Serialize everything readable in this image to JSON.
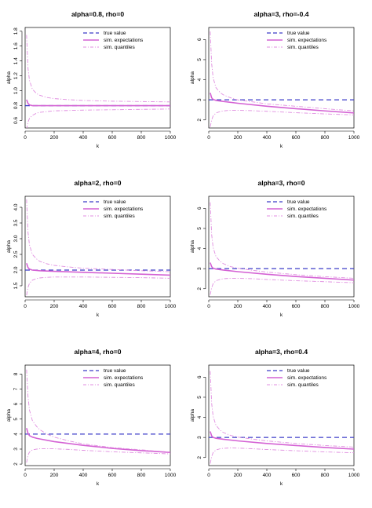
{
  "chart_data": [
    {
      "type": "line",
      "title": "alpha=0.8, rho=0",
      "xlabel": "k",
      "ylabel": "alpha",
      "xlim": [
        0,
        1000
      ],
      "ylim": [
        0.5,
        1.85
      ],
      "xticks": [
        0,
        200,
        400,
        600,
        800,
        1000
      ],
      "yticks": [
        0.6,
        0.8,
        1.0,
        1.2,
        1.4,
        1.6,
        1.8
      ],
      "legend": {
        "position": "top-right",
        "entries": [
          "true value",
          "sim. expectations",
          "sim. quantiles"
        ]
      },
      "series": [
        {
          "name": "true value",
          "style": "dashed",
          "color": "#3c3cc8",
          "x": [
            0,
            1000
          ],
          "y": [
            0.8,
            0.8
          ]
        },
        {
          "name": "sim. expectations",
          "style": "solid",
          "color": "#d462d4",
          "x": [
            10,
            20,
            30,
            50,
            80,
            100,
            200,
            400,
            600,
            800,
            1000
          ],
          "y": [
            0.88,
            0.83,
            0.81,
            0.8,
            0.8,
            0.8,
            0.8,
            0.8,
            0.8,
            0.8,
            0.8
          ]
        },
        {
          "name": "sim. quantiles",
          "style": "dashdot",
          "color": "#e08ee0",
          "x": [
            10,
            20,
            30,
            50,
            80,
            100,
            150,
            200,
            300,
            400,
            600,
            800,
            1000
          ],
          "y": [
            1.75,
            1.3,
            1.14,
            1.02,
            0.96,
            0.94,
            0.91,
            0.895,
            0.88,
            0.87,
            0.86,
            0.855,
            0.85
          ]
        },
        {
          "name": "",
          "style": "dashdot",
          "color": "#e08ee0",
          "x": [
            10,
            20,
            30,
            50,
            80,
            100,
            150,
            200,
            300,
            400,
            600,
            800,
            1000
          ],
          "y": [
            0.48,
            0.58,
            0.63,
            0.67,
            0.7,
            0.71,
            0.72,
            0.73,
            0.735,
            0.74,
            0.745,
            0.75,
            0.755
          ]
        }
      ]
    },
    {
      "type": "line",
      "title": "alpha=3, rho=-0.4",
      "xlabel": "k",
      "ylabel": "alpha",
      "xlim": [
        0,
        1000
      ],
      "ylim": [
        1.6,
        6.6
      ],
      "xticks": [
        0,
        200,
        400,
        600,
        800,
        1000
      ],
      "yticks": [
        2,
        3,
        4,
        5,
        6
      ],
      "legend": {
        "position": "top-right",
        "entries": [
          "true value",
          "sim. expectations",
          "sim. quantiles"
        ]
      },
      "series": [
        {
          "name": "true value",
          "style": "dashed",
          "color": "#3c3cc8",
          "x": [
            0,
            1000
          ],
          "y": [
            3,
            3
          ]
        },
        {
          "name": "sim. expectations",
          "style": "solid",
          "color": "#d462d4",
          "x": [
            10,
            20,
            30,
            50,
            80,
            100,
            200,
            400,
            600,
            800,
            1000
          ],
          "y": [
            3.35,
            3.1,
            3.02,
            2.97,
            2.94,
            2.92,
            2.83,
            2.68,
            2.56,
            2.45,
            2.35
          ]
        },
        {
          "name": "sim. quantiles",
          "style": "dashdot",
          "color": "#e08ee0",
          "x": [
            10,
            20,
            30,
            50,
            80,
            100,
            150,
            200,
            300,
            400,
            600,
            800,
            1000
          ],
          "y": [
            6.4,
            4.8,
            4.1,
            3.6,
            3.35,
            3.25,
            3.1,
            3.0,
            2.9,
            2.8,
            2.68,
            2.56,
            2.45
          ]
        },
        {
          "name": "",
          "style": "dashdot",
          "color": "#e08ee0",
          "x": [
            10,
            20,
            30,
            50,
            80,
            100,
            150,
            200,
            300,
            400,
            600,
            800,
            1000
          ],
          "y": [
            1.65,
            2.0,
            2.2,
            2.35,
            2.42,
            2.45,
            2.48,
            2.48,
            2.46,
            2.43,
            2.36,
            2.3,
            2.25
          ]
        }
      ]
    },
    {
      "type": "line",
      "title": "alpha=2, rho=0",
      "xlabel": "k",
      "ylabel": "alpha",
      "xlim": [
        0,
        1000
      ],
      "ylim": [
        1.15,
        4.35
      ],
      "xticks": [
        0,
        200,
        400,
        600,
        800,
        1000
      ],
      "yticks": [
        1.5,
        2.0,
        2.5,
        3.0,
        3.5,
        4.0
      ],
      "legend": {
        "position": "top-right",
        "entries": [
          "true value",
          "sim. expectations",
          "sim. quantiles"
        ]
      },
      "series": [
        {
          "name": "true value",
          "style": "dashed",
          "color": "#3c3cc8",
          "x": [
            0,
            1000
          ],
          "y": [
            2,
            2
          ]
        },
        {
          "name": "sim. expectations",
          "style": "solid",
          "color": "#d462d4",
          "x": [
            10,
            20,
            30,
            50,
            80,
            100,
            200,
            400,
            600,
            800,
            1000
          ],
          "y": [
            2.22,
            2.08,
            2.03,
            2.0,
            1.99,
            1.98,
            1.96,
            1.93,
            1.9,
            1.87,
            1.84
          ]
        },
        {
          "name": "sim. quantiles",
          "style": "dashdot",
          "color": "#e08ee0",
          "x": [
            10,
            20,
            30,
            50,
            80,
            100,
            150,
            200,
            300,
            400,
            600,
            800,
            1000
          ],
          "y": [
            4.25,
            3.2,
            2.8,
            2.5,
            2.35,
            2.28,
            2.2,
            2.15,
            2.1,
            2.06,
            2.02,
            1.98,
            1.95
          ]
        },
        {
          "name": "",
          "style": "dashdot",
          "color": "#e08ee0",
          "x": [
            10,
            20,
            30,
            50,
            80,
            100,
            150,
            200,
            300,
            400,
            600,
            800,
            1000
          ],
          "y": [
            1.2,
            1.45,
            1.58,
            1.68,
            1.73,
            1.75,
            1.77,
            1.78,
            1.78,
            1.78,
            1.77,
            1.76,
            1.74
          ]
        }
      ]
    },
    {
      "type": "line",
      "title": "alpha=3, rho=0",
      "xlabel": "k",
      "ylabel": "alpha",
      "xlim": [
        0,
        1000
      ],
      "ylim": [
        1.6,
        6.6
      ],
      "xticks": [
        0,
        200,
        400,
        600,
        800,
        1000
      ],
      "yticks": [
        2,
        3,
        4,
        5,
        6
      ],
      "legend": {
        "position": "top-right",
        "entries": [
          "true value",
          "sim. expectations",
          "sim. quantiles"
        ]
      },
      "series": [
        {
          "name": "true value",
          "style": "dashed",
          "color": "#3c3cc8",
          "x": [
            0,
            1000
          ],
          "y": [
            3,
            3
          ]
        },
        {
          "name": "sim. expectations",
          "style": "solid",
          "color": "#d462d4",
          "x": [
            10,
            20,
            30,
            50,
            80,
            100,
            200,
            400,
            600,
            800,
            1000
          ],
          "y": [
            3.3,
            3.1,
            3.02,
            2.98,
            2.95,
            2.93,
            2.85,
            2.72,
            2.61,
            2.52,
            2.43
          ]
        },
        {
          "name": "sim. quantiles",
          "style": "dashdot",
          "color": "#e08ee0",
          "x": [
            10,
            20,
            30,
            50,
            80,
            100,
            150,
            200,
            300,
            400,
            600,
            800,
            1000
          ],
          "y": [
            6.3,
            4.7,
            4.05,
            3.6,
            3.35,
            3.25,
            3.1,
            3.02,
            2.92,
            2.83,
            2.7,
            2.6,
            2.52
          ]
        },
        {
          "name": "",
          "style": "dashdot",
          "color": "#e08ee0",
          "x": [
            10,
            20,
            30,
            50,
            80,
            100,
            150,
            200,
            300,
            400,
            600,
            800,
            1000
          ],
          "y": [
            1.7,
            2.05,
            2.25,
            2.4,
            2.47,
            2.5,
            2.52,
            2.52,
            2.5,
            2.46,
            2.4,
            2.35,
            2.3
          ]
        }
      ]
    },
    {
      "type": "line",
      "title": "alpha=4, rho=0",
      "xlabel": "k",
      "ylabel": "alpha",
      "xlim": [
        0,
        1000
      ],
      "ylim": [
        1.9,
        8.6
      ],
      "xticks": [
        0,
        200,
        400,
        600,
        800,
        1000
      ],
      "yticks": [
        2,
        3,
        4,
        5,
        6,
        7,
        8
      ],
      "legend": {
        "position": "top-right",
        "entries": [
          "true value",
          "sim. expectations",
          "sim. quantiles"
        ]
      },
      "series": [
        {
          "name": "true value",
          "style": "dashed",
          "color": "#3c3cc8",
          "x": [
            0,
            1000
          ],
          "y": [
            4,
            4
          ]
        },
        {
          "name": "sim. expectations",
          "style": "solid",
          "color": "#d462d4",
          "x": [
            10,
            20,
            30,
            50,
            80,
            100,
            200,
            400,
            600,
            800,
            1000
          ],
          "y": [
            4.4,
            4.05,
            3.9,
            3.8,
            3.72,
            3.68,
            3.5,
            3.25,
            3.05,
            2.9,
            2.78
          ]
        },
        {
          "name": "sim. quantiles",
          "style": "dashdot",
          "color": "#e08ee0",
          "x": [
            10,
            20,
            30,
            50,
            80,
            100,
            150,
            200,
            300,
            400,
            600,
            800,
            1000
          ],
          "y": [
            8.3,
            6.5,
            5.6,
            4.9,
            4.5,
            4.3,
            4.0,
            3.8,
            3.55,
            3.35,
            3.1,
            2.95,
            2.8
          ]
        },
        {
          "name": "",
          "style": "dashdot",
          "color": "#e08ee0",
          "x": [
            10,
            20,
            30,
            50,
            80,
            100,
            150,
            200,
            300,
            400,
            600,
            800,
            1000
          ],
          "y": [
            2.1,
            2.6,
            2.8,
            2.95,
            3.0,
            3.02,
            3.03,
            3.02,
            2.98,
            2.92,
            2.82,
            2.75,
            2.68
          ]
        }
      ]
    },
    {
      "type": "line",
      "title": "alpha=3, rho=0.4",
      "xlabel": "k",
      "ylabel": "alpha",
      "xlim": [
        0,
        1000
      ],
      "ylim": [
        1.6,
        6.6
      ],
      "xticks": [
        0,
        200,
        400,
        600,
        800,
        1000
      ],
      "yticks": [
        2,
        3,
        4,
        5,
        6
      ],
      "legend": {
        "position": "top-right",
        "entries": [
          "true value",
          "sim. expectations",
          "sim. quantiles"
        ]
      },
      "series": [
        {
          "name": "true value",
          "style": "dashed",
          "color": "#3c3cc8",
          "x": [
            0,
            1000
          ],
          "y": [
            3,
            3
          ]
        },
        {
          "name": "sim. expectations",
          "style": "solid",
          "color": "#d462d4",
          "x": [
            10,
            20,
            30,
            50,
            80,
            100,
            200,
            400,
            600,
            800,
            1000
          ],
          "y": [
            3.3,
            3.08,
            3.0,
            2.96,
            2.93,
            2.91,
            2.83,
            2.7,
            2.6,
            2.5,
            2.42
          ]
        },
        {
          "name": "sim. quantiles",
          "style": "dashdot",
          "color": "#e08ee0",
          "x": [
            10,
            20,
            30,
            50,
            80,
            100,
            150,
            200,
            300,
            400,
            600,
            800,
            1000
          ],
          "y": [
            6.3,
            4.7,
            4.05,
            3.6,
            3.35,
            3.25,
            3.1,
            3.02,
            2.92,
            2.83,
            2.7,
            2.6,
            2.52
          ]
        },
        {
          "name": "",
          "style": "dashdot",
          "color": "#e08ee0",
          "x": [
            10,
            20,
            30,
            50,
            80,
            100,
            150,
            200,
            300,
            400,
            600,
            800,
            1000
          ],
          "y": [
            1.7,
            2.05,
            2.25,
            2.38,
            2.44,
            2.46,
            2.48,
            2.47,
            2.44,
            2.4,
            2.34,
            2.28,
            2.24
          ]
        }
      ]
    }
  ]
}
